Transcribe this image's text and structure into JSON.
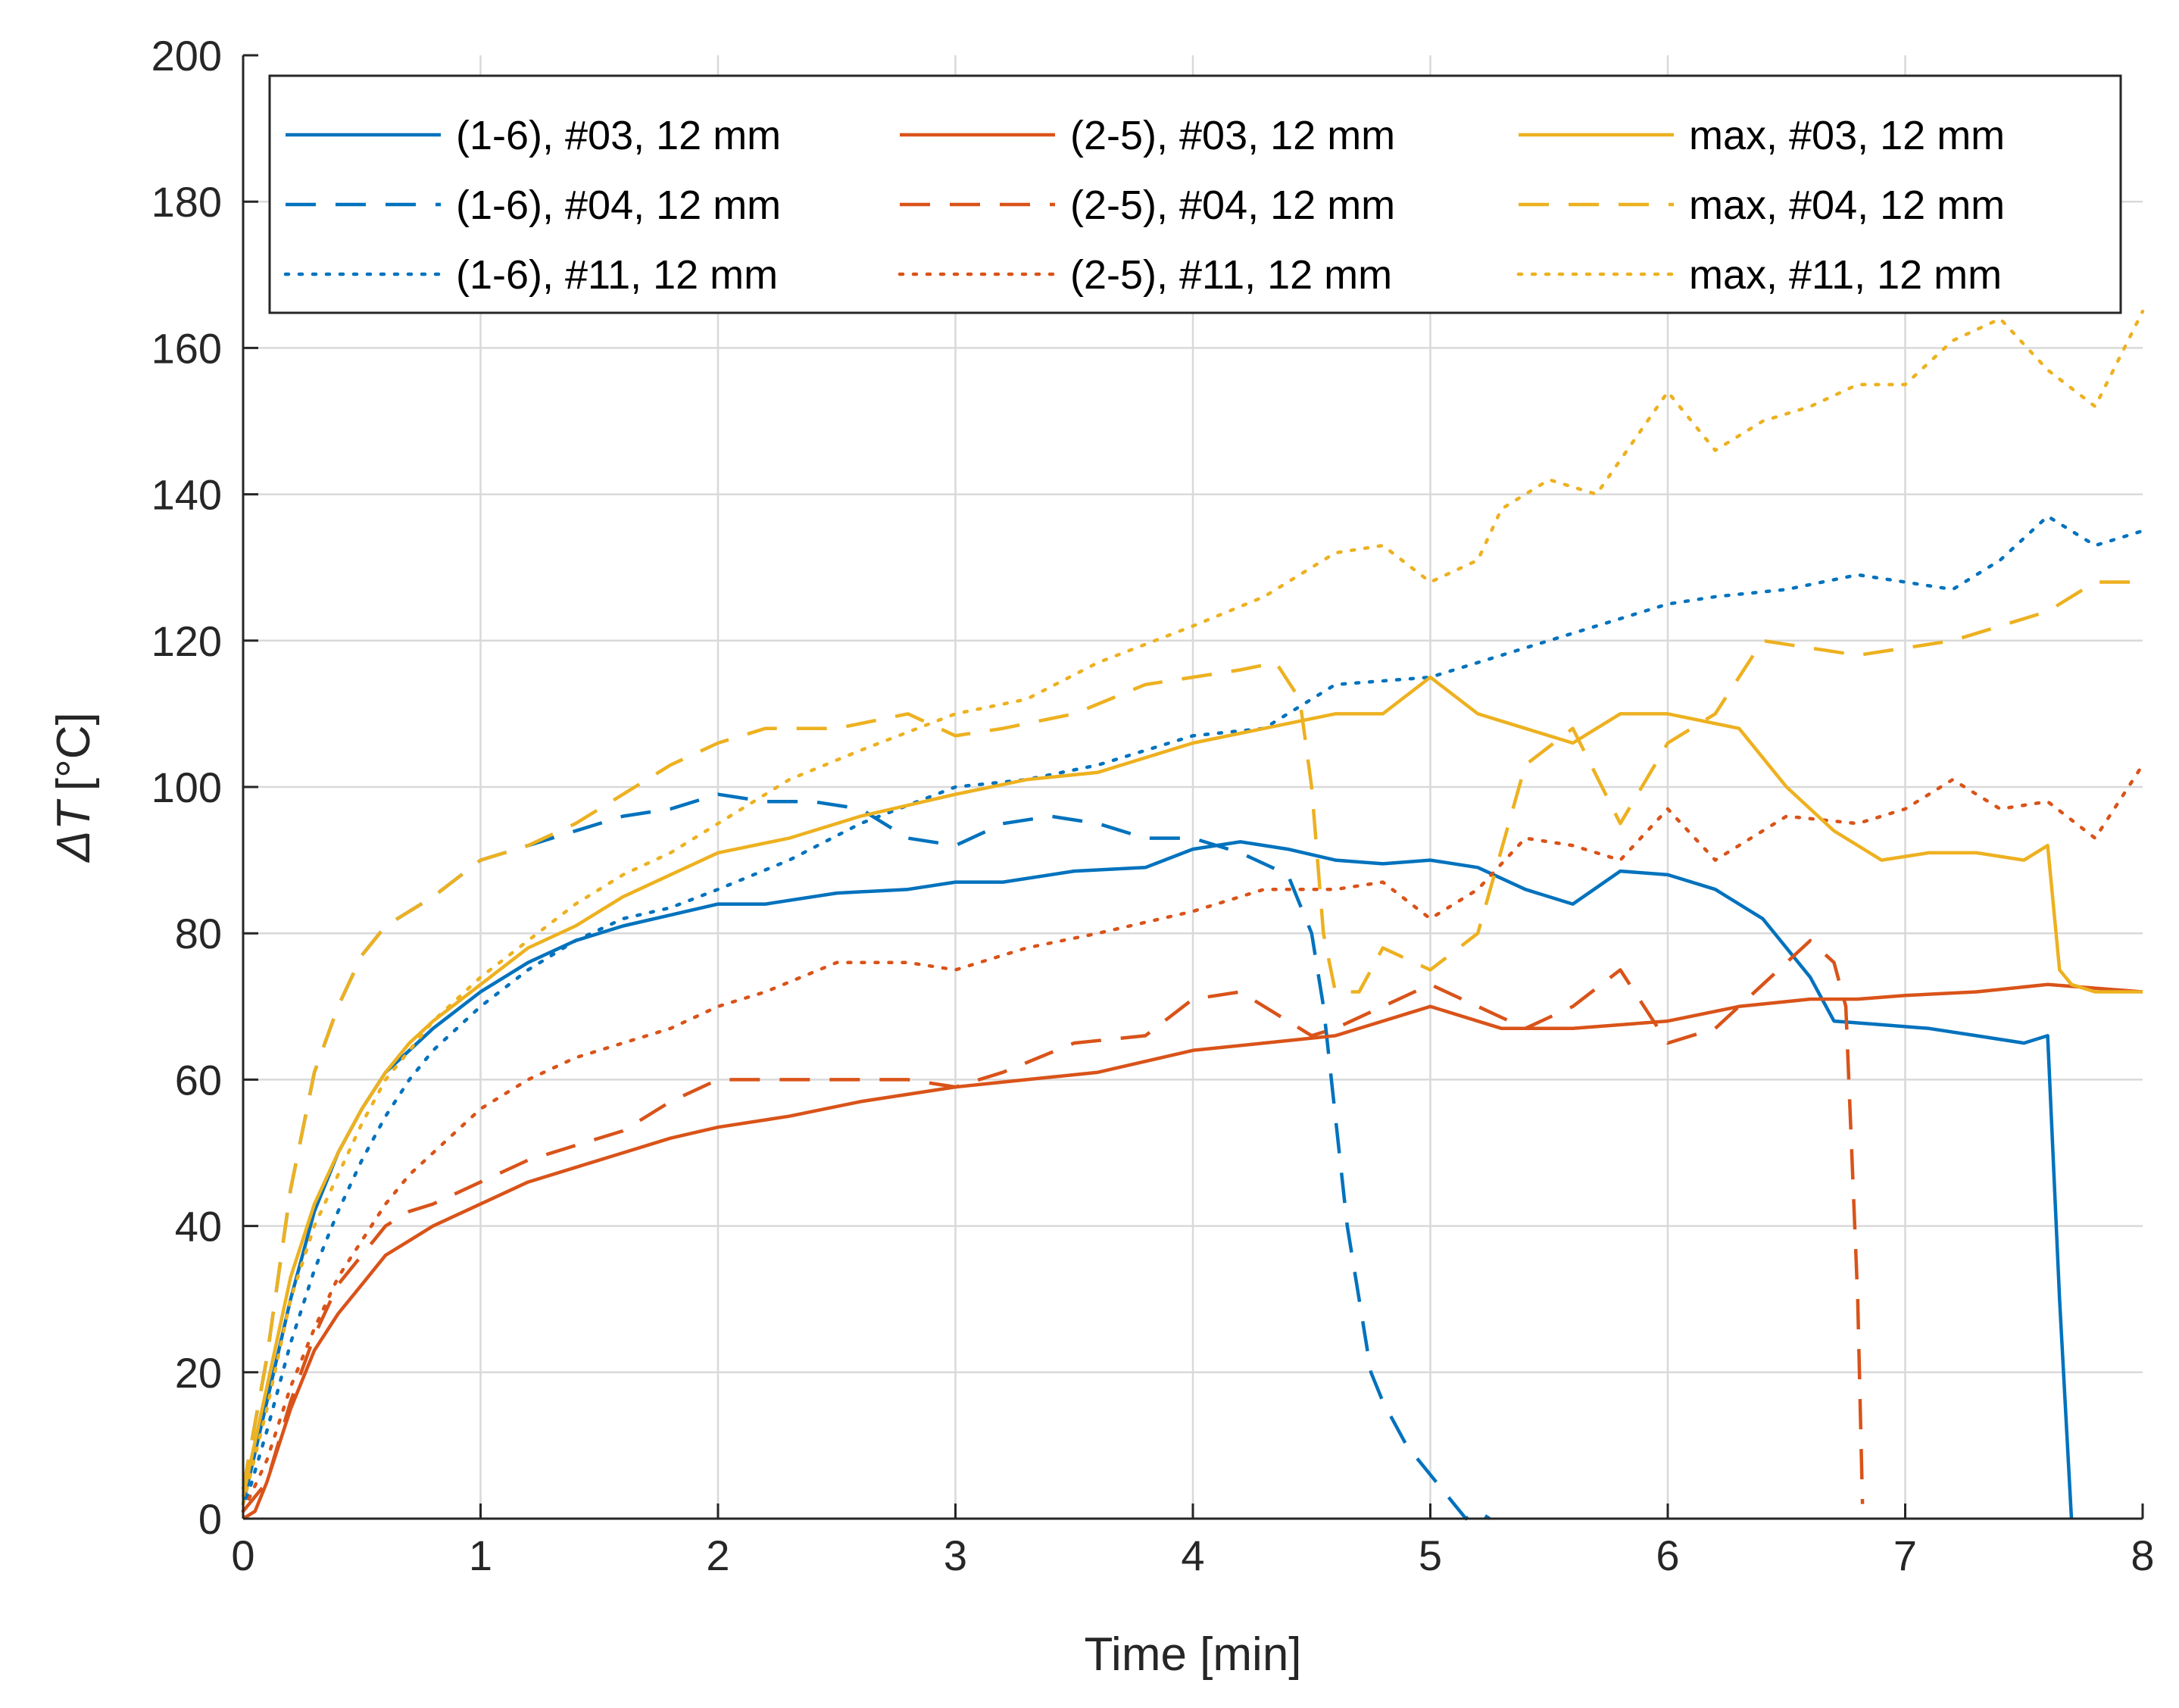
{
  "chart_data": {
    "type": "line",
    "title": "",
    "xlabel": "Time [min]",
    "ylabel_symbol": "ΔT",
    "ylabel_unit": "[°C]",
    "xlim": [
      0,
      8
    ],
    "ylim": [
      0,
      200
    ],
    "xticks": [
      "0",
      "1",
      "2",
      "3",
      "4",
      "5",
      "6",
      "7",
      "8"
    ],
    "yticks": [
      "0",
      "20",
      "40",
      "60",
      "80",
      "100",
      "120",
      "140",
      "160",
      "180",
      "200"
    ],
    "grid": true,
    "legend_position": "top, 3 columns",
    "colors": {
      "blue": "#0072BD",
      "orange": "#D95319",
      "yellow": "#EDB120"
    },
    "series": [
      {
        "name": "(1-6), #03, 12 mm",
        "color": "#0072BD",
        "dash": "solid",
        "x": [
          0,
          0.1,
          0.2,
          0.3,
          0.4,
          0.5,
          0.6,
          0.7,
          0.8,
          1.0,
          1.2,
          1.4,
          1.6,
          1.8,
          2.0,
          2.2,
          2.5,
          2.8,
          3.0,
          3.2,
          3.5,
          3.8,
          4.0,
          4.2,
          4.4,
          4.6,
          4.8,
          5.0,
          5.2,
          5.4,
          5.6,
          5.8,
          6.0,
          6.2,
          6.4,
          6.6,
          6.7,
          6.9,
          7.1,
          7.3,
          7.5,
          7.6,
          7.65,
          7.7
        ],
        "y": [
          2,
          16,
          30,
          42,
          50,
          56,
          61,
          64,
          67,
          72,
          76,
          79,
          81,
          82.5,
          84,
          84,
          85.5,
          86,
          87,
          87,
          88.5,
          89,
          91.5,
          92.5,
          91.5,
          90,
          89.5,
          90,
          89,
          86,
          84,
          88.5,
          88,
          86,
          82,
          74,
          68,
          67.5,
          67,
          66,
          65,
          66,
          30,
          0
        ]
      },
      {
        "name": "(1-6), #04, 12 mm",
        "color": "#0072BD",
        "dash": "long",
        "x": [
          0,
          0.1,
          0.2,
          0.3,
          0.4,
          0.5,
          0.6,
          0.7,
          0.8,
          1.0,
          1.2,
          1.4,
          1.6,
          1.8,
          2.0,
          2.2,
          2.4,
          2.6,
          2.8,
          3.0,
          3.2,
          3.4,
          3.6,
          3.8,
          4.0,
          4.2,
          4.4,
          4.5,
          4.55,
          4.6,
          4.65,
          4.7,
          4.75,
          4.8,
          4.9,
          5.0,
          5.1,
          5.15,
          5.2,
          5.25
        ],
        "y": [
          4,
          22,
          45,
          61,
          70,
          77,
          81,
          83,
          85,
          90,
          92,
          94,
          96,
          97,
          99,
          98,
          98,
          97,
          93,
          92,
          95,
          96,
          95,
          93,
          93,
          91,
          88,
          80,
          70,
          55,
          40,
          30,
          20,
          16,
          10,
          6,
          2,
          0,
          1,
          0
        ]
      },
      {
        "name": "(1-6), #11, 12 mm",
        "color": "#0072BD",
        "dash": "dot",
        "x": [
          0,
          0.1,
          0.2,
          0.3,
          0.4,
          0.5,
          0.6,
          0.7,
          0.8,
          1.0,
          1.2,
          1.4,
          1.6,
          1.8,
          2.0,
          2.3,
          2.6,
          3.0,
          3.3,
          3.6,
          4.0,
          4.3,
          4.6,
          5.0,
          5.3,
          5.6,
          6.0,
          6.2,
          6.5,
          6.8,
          7.0,
          7.2,
          7.4,
          7.6,
          7.8,
          8.0
        ],
        "y": [
          1,
          12,
          24,
          34,
          42,
          49,
          55,
          60,
          64,
          70,
          75,
          79,
          82,
          83.5,
          86,
          90,
          95,
          100,
          101,
          103,
          107,
          108,
          114,
          115,
          118,
          121,
          125,
          126,
          127,
          129,
          128,
          127,
          131,
          137,
          133,
          135
        ]
      },
      {
        "name": "(2-5), #03, 12 mm",
        "color": "#D95319",
        "dash": "solid",
        "x": [
          0,
          0.05,
          0.1,
          0.2,
          0.3,
          0.4,
          0.5,
          0.6,
          0.7,
          0.8,
          1.0,
          1.2,
          1.4,
          1.6,
          1.8,
          2.0,
          2.3,
          2.6,
          3.0,
          3.3,
          3.6,
          4.0,
          4.3,
          4.6,
          5.0,
          5.3,
          5.6,
          6.0,
          6.3,
          6.6,
          6.8,
          7.0,
          7.3,
          7.6,
          8.0
        ],
        "y": [
          0,
          1,
          5,
          15,
          23,
          28,
          32,
          36,
          38,
          40,
          43,
          46,
          48,
          50,
          52,
          53.5,
          55,
          57,
          59,
          60,
          61,
          64,
          65,
          66,
          70,
          67,
          67,
          68,
          70,
          71,
          71,
          71.5,
          72,
          73,
          72
        ]
      },
      {
        "name": "(2-5), #04, 12 mm",
        "color": "#D95319",
        "dash": "long",
        "x": [
          0,
          0.1,
          0.2,
          0.3,
          0.4,
          0.5,
          0.6,
          0.7,
          0.8,
          1.0,
          1.2,
          1.4,
          1.6,
          1.8,
          2.0,
          2.2,
          2.5,
          2.8,
          3.0,
          3.2,
          3.5,
          3.8,
          4.0,
          4.2,
          4.4,
          4.5,
          4.6,
          4.8,
          5.0,
          5.2,
          5.4,
          5.6,
          5.8,
          6.0,
          6.2,
          6.4,
          6.6,
          6.7,
          6.75,
          6.8,
          6.82
        ],
        "y": [
          1,
          5,
          16,
          25,
          32,
          36,
          40,
          42,
          43,
          46,
          49,
          51,
          53,
          57,
          60,
          60,
          60,
          60,
          59,
          61,
          65,
          66,
          71,
          72,
          68,
          66,
          67,
          70,
          73,
          70,
          67,
          70,
          75,
          65,
          67,
          73,
          79,
          76,
          70,
          30,
          2
        ]
      },
      {
        "name": "(2-5), #11, 12 mm",
        "color": "#D95319",
        "dash": "dot",
        "x": [
          0,
          0.1,
          0.2,
          0.3,
          0.4,
          0.5,
          0.6,
          0.7,
          0.8,
          1.0,
          1.2,
          1.4,
          1.6,
          1.8,
          2.0,
          2.2,
          2.5,
          2.8,
          3.0,
          3.3,
          3.6,
          4.0,
          4.3,
          4.6,
          4.8,
          5.0,
          5.2,
          5.4,
          5.6,
          5.8,
          6.0,
          6.2,
          6.5,
          6.8,
          7.0,
          7.2,
          7.4,
          7.6,
          7.8,
          8.0
        ],
        "y": [
          1,
          8,
          18,
          26,
          33,
          38,
          43,
          47,
          50,
          56,
          60,
          63,
          65,
          67,
          70,
          72,
          76,
          76,
          75,
          78,
          80,
          83,
          86,
          86,
          87,
          82,
          86,
          93,
          92,
          90,
          97,
          90,
          96,
          95,
          97,
          101,
          97,
          98,
          93,
          103
        ]
      },
      {
        "name": "max, #03, 12 mm",
        "color": "#EDB120",
        "dash": "solid",
        "x": [
          0,
          0.1,
          0.2,
          0.3,
          0.4,
          0.5,
          0.6,
          0.7,
          0.8,
          1.0,
          1.2,
          1.4,
          1.6,
          1.8,
          2.0,
          2.3,
          2.6,
          3.0,
          3.3,
          3.6,
          4.0,
          4.3,
          4.6,
          4.8,
          5.0,
          5.2,
          5.4,
          5.6,
          5.8,
          6.0,
          6.3,
          6.5,
          6.7,
          6.9,
          7.1,
          7.3,
          7.5,
          7.6,
          7.65,
          7.7,
          7.8,
          8.0
        ],
        "y": [
          3,
          18,
          33,
          43,
          50,
          56,
          61,
          65,
          68,
          73,
          78,
          81,
          85,
          88,
          91,
          93,
          96,
          99,
          101,
          102,
          106,
          108,
          110,
          110,
          115,
          110,
          108,
          106,
          110,
          110,
          108,
          100,
          94,
          90,
          91,
          91,
          90,
          92,
          75,
          73,
          72,
          72
        ]
      },
      {
        "name": "max, #04, 12 mm",
        "color": "#EDB120",
        "dash": "long",
        "x": [
          0,
          0.1,
          0.2,
          0.3,
          0.4,
          0.5,
          0.6,
          0.7,
          0.8,
          1.0,
          1.2,
          1.4,
          1.6,
          1.8,
          2.0,
          2.2,
          2.5,
          2.8,
          3.0,
          3.2,
          3.5,
          3.8,
          4.0,
          4.2,
          4.35,
          4.45,
          4.5,
          4.55,
          4.6,
          4.7,
          4.8,
          5.0,
          5.2,
          5.4,
          5.6,
          5.8,
          6.0,
          6.2,
          6.4,
          6.6,
          6.8,
          7.0,
          7.2,
          7.4,
          7.6,
          7.8,
          8.0
        ],
        "y": [
          4,
          22,
          45,
          61,
          70,
          77,
          81,
          83,
          85,
          90,
          92,
          95,
          99,
          103,
          106,
          108,
          108,
          110,
          107,
          108,
          110,
          114,
          115,
          116,
          117,
          112,
          100,
          80,
          72,
          72,
          78,
          75,
          80,
          103,
          108,
          95,
          106,
          110,
          120,
          119,
          118,
          119,
          120,
          122,
          124,
          128,
          128
        ]
      },
      {
        "name": "max, #11, 12 mm",
        "color": "#EDB120",
        "dash": "dot",
        "x": [
          0,
          0.1,
          0.2,
          0.3,
          0.4,
          0.5,
          0.6,
          0.7,
          0.8,
          1.0,
          1.2,
          1.4,
          1.6,
          1.8,
          2.0,
          2.3,
          2.6,
          3.0,
          3.3,
          3.6,
          4.0,
          4.3,
          4.6,
          4.8,
          5.0,
          5.2,
          5.3,
          5.5,
          5.7,
          6.0,
          6.2,
          6.4,
          6.6,
          6.8,
          7.0,
          7.2,
          7.4,
          7.6,
          7.8,
          8.0
        ],
        "y": [
          2,
          15,
          30,
          40,
          47,
          54,
          60,
          64,
          68,
          74,
          79,
          84,
          88,
          91,
          95,
          101,
          105,
          110,
          112,
          117,
          122,
          126,
          132,
          133,
          128,
          131,
          138,
          142,
          140,
          154,
          146,
          150,
          152,
          155,
          155,
          161,
          164,
          157,
          152,
          165
        ]
      }
    ]
  }
}
